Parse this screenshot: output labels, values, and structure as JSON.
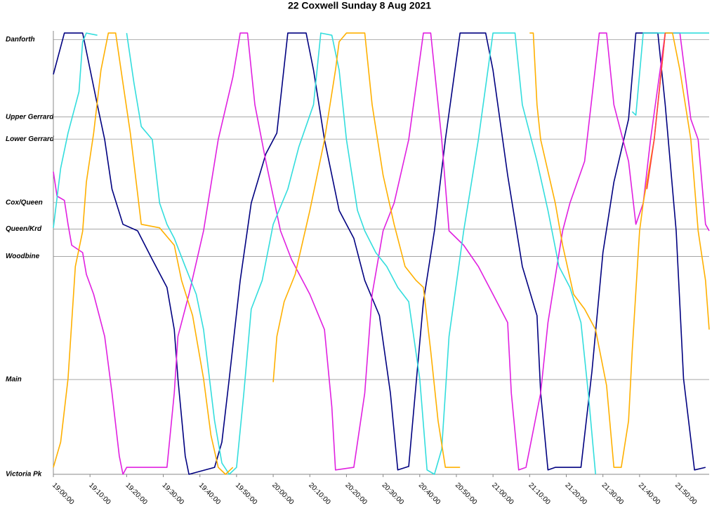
{
  "chart_data": {
    "type": "line",
    "title": "22 Coxwell Sunday 8 Aug 2021",
    "xlim": [
      "19:00:00",
      "21:59:00"
    ],
    "xticks": [
      "19:00:00",
      "19:10:00",
      "19:20:00",
      "19:30:00",
      "19:40:00",
      "19:50:00",
      "20:00:00",
      "20:10:00",
      "20:20:00",
      "20:30:00",
      "20:40:00",
      "20:50:00",
      "21:00:00",
      "21:10:00",
      "21:20:00",
      "21:30:00",
      "21:40:00",
      "21:50:00"
    ],
    "ylim": [
      0,
      102
    ],
    "yticks": [
      {
        "value": 0,
        "label": "Victoria Pk"
      },
      {
        "value": 21.8,
        "label": "Main"
      },
      {
        "value": 50.1,
        "label": "Woodbine"
      },
      {
        "value": 56.4,
        "label": "Queen/Krd"
      },
      {
        "value": 62.5,
        "label": "Cox/Queen"
      },
      {
        "value": 77.1,
        "label": "Lower Gerrard"
      },
      {
        "value": 82.2,
        "label": "Upper Gerrard"
      },
      {
        "value": 100,
        "label": "Danforth"
      }
    ],
    "grid": true,
    "series": [
      {
        "color": "#000080",
        "x": [
          "19:00:00",
          "19:03:00",
          "19:08:00",
          "19:12:00",
          "19:14:00",
          "19:16:00",
          "19:19:00",
          "19:23:00",
          "19:27:00",
          "19:31:00",
          "19:33:00",
          "19:34:00",
          "19:36:00",
          "19:37:00",
          "19:44:00",
          "19:46:00",
          "19:48:00",
          "19:51:00",
          "19:54:00",
          "19:58:00",
          "20:01:00",
          "20:04:00",
          "20:09:00",
          "20:11:00",
          "20:14:00",
          "20:18:00",
          "20:22:00",
          "20:25:00",
          "20:29:00",
          "20:32:00",
          "20:34:00",
          "20:37:00",
          "20:41:00",
          "20:44:00",
          "20:47:00",
          "20:51:00",
          "20:58:00",
          "21:00:00",
          "21:04:00",
          "21:08:00",
          "21:12:00",
          "21:13:00",
          "21:15:00",
          "21:17:00",
          "21:24:00",
          "21:27:00",
          "21:30:00",
          "21:33:00",
          "21:37:00",
          "21:39:00",
          "21:45:00",
          "21:47:00",
          "21:50:00",
          "21:52:00",
          "21:55:00",
          "21:58:00"
        ],
        "values": [
          92,
          101.5,
          101.5,
          85,
          77,
          65.6,
          57.5,
          56,
          49.4,
          43,
          33.3,
          22,
          4.2,
          0,
          1.6,
          7.4,
          22,
          44.6,
          62.4,
          73.7,
          78.5,
          101.5,
          101.5,
          93,
          77,
          60.7,
          54.3,
          44.6,
          36.5,
          18.7,
          1,
          1.8,
          39.7,
          56,
          77,
          101.5,
          101.5,
          93,
          68.8,
          47.8,
          36.5,
          18.7,
          1,
          1.6,
          1.6,
          23.6,
          51,
          67.2,
          81.7,
          101.5,
          101.5,
          85,
          56,
          22,
          1,
          1.6
        ]
      },
      {
        "color": "#e020e0",
        "x": [
          "19:00:00",
          "19:01:00",
          "19:03:00",
          "19:04:00",
          "19:05:00",
          "19:08:00",
          "19:09:00",
          "19:11:00",
          "19:14:00",
          "19:16:00",
          "19:18:00",
          "19:19:00",
          "19:20:00",
          "19:31:00",
          "19:33:00",
          "19:34:00",
          "19:37:00",
          "19:41:00",
          "19:45:00",
          "19:49:00",
          "19:51:00",
          "19:53:00",
          "19:55:00",
          "19:58:00",
          "20:02:00",
          "20:05:00",
          "20:10:00",
          "20:14:00",
          "20:16:00",
          "20:17:00",
          "20:22:00",
          "20:25:00",
          "20:27:00",
          "20:30:00",
          "20:33:00",
          "20:37:00",
          "20:41:00",
          "20:43:00",
          "20:46:00",
          "20:48:00",
          "20:52:00",
          "20:56:00",
          "21:00:00",
          "21:04:00",
          "21:05:00",
          "21:07:00",
          "21:09:00",
          "21:13:00",
          "21:15:00",
          "21:19:00",
          "21:21:00",
          "21:25:00",
          "21:29:00",
          "21:31:00",
          "21:33:00",
          "21:37:00",
          "21:39:00",
          "21:41:00",
          "21:43:00",
          "21:47:00",
          "21:51:00",
          "21:54:00",
          "21:56:00",
          "21:58:00",
          "21:59:00"
        ],
        "values": [
          69.6,
          64,
          63,
          57.5,
          52.7,
          51,
          46,
          41.4,
          31.7,
          18.7,
          4.2,
          0,
          1.6,
          1.6,
          18.7,
          31.7,
          41.4,
          56,
          77,
          91.4,
          101.5,
          101.5,
          85,
          72,
          56,
          49.4,
          41.4,
          33.3,
          15.5,
          1,
          1.6,
          18.7,
          41.4,
          56,
          62.4,
          77,
          101.5,
          101.5,
          77,
          56,
          52.7,
          47.8,
          41.4,
          34.9,
          18.7,
          1,
          1.6,
          18.7,
          34.9,
          56,
          62.4,
          72,
          101.5,
          101.5,
          85,
          72,
          57.5,
          62.4,
          77,
          101.5,
          101.5,
          81.7,
          77,
          57.5,
          56
        ]
      },
      {
        "color": "#33dddd",
        "x": [
          "19:00:00",
          "19:02:00",
          "19:04:00",
          "19:07:00",
          "19:08:00",
          "19:09:00",
          "19:12:00",
          "19:14:00",
          "19:20:00",
          "19:22:00",
          "19:24:00",
          "19:27:00",
          "19:29:00",
          "19:31:00",
          "19:33:00",
          "19:36:00",
          "19:39:00",
          "19:41:00",
          "19:44:00",
          "19:46:00",
          "19:48:00",
          "19:50:00",
          "19:52:00",
          "19:54:00",
          "19:57:00",
          "20:00:00",
          "20:04:00",
          "20:07:00",
          "20:11:00",
          "20:13:00",
          "20:16:00",
          "20:18:00",
          "20:20:00",
          "20:23:00",
          "20:25:00",
          "20:28:00",
          "20:31:00",
          "20:34:00",
          "20:37:00",
          "20:40:00",
          "20:42:00",
          "20:44:00",
          "20:46:00",
          "20:48:00",
          "20:52:00",
          "20:56:00",
          "21:00:00",
          "21:06:00",
          "21:08:00",
          "21:12:00",
          "21:15:00",
          "21:18:00",
          "21:21:00",
          "21:24:00",
          "21:26:00",
          "21:28:00",
          "21:30:00",
          "21:38:00",
          "21:39:00",
          "21:41:00",
          "21:59:00"
        ],
        "values": [
          56.7,
          70.4,
          78.5,
          88,
          99.5,
          101.5,
          101,
          null,
          101.5,
          90,
          80,
          77,
          62.4,
          57.5,
          54.3,
          47.8,
          41.4,
          33.3,
          12.3,
          2.6,
          0,
          1.6,
          18.7,
          38,
          44.6,
          57.5,
          65.6,
          75.3,
          85,
          101.5,
          101,
          93,
          77,
          60.7,
          56,
          51,
          47.8,
          43,
          39.7,
          22,
          1,
          0,
          5.8,
          31.7,
          56,
          77,
          101.5,
          101.5,
          85,
          72,
          60.7,
          47.8,
          43,
          34.9,
          18.7,
          0,
          null,
          83.4,
          82.6,
          101.5,
          101.5
        ]
      },
      {
        "color": "#ffb000",
        "x": [
          "19:00:00",
          "19:02:00",
          "19:04:00",
          "19:06:00",
          "19:08:00",
          "19:09:00",
          "19:11:00",
          "19:13:00",
          "19:15:00",
          "19:17:00",
          "19:19:00",
          "19:21:00",
          "19:24:00",
          "19:29:00",
          "19:33:00",
          "19:35:00",
          "19:38:00",
          "19:41:00",
          "19:43:00",
          "19:45:00",
          "19:47:00",
          "19:49:00",
          "19:55:00",
          "20:00:00",
          "20:01:00",
          "20:03:00",
          "20:06:00",
          "20:10:00",
          "20:14:00",
          "20:17:00",
          "20:18:00",
          "20:20:00",
          "20:25:00",
          "20:27:00",
          "20:30:00",
          "20:33:00",
          "20:36:00",
          "20:39:00",
          "20:41:00",
          "20:43:00",
          "20:45:00",
          "20:47:00",
          "20:48:00",
          "20:51:00",
          "21:00:00",
          "21:10:00",
          "21:11:00",
          "21:12:00",
          "21:13:00",
          "21:17:00",
          "21:19:00",
          "21:22:00",
          "21:25:00",
          "21:28:00",
          "21:31:00",
          "21:33:00",
          "21:35:00",
          "21:37:00",
          "21:38:00",
          "21:40:00",
          "21:41:00",
          "21:44:00",
          "21:47:00",
          "21:49:00",
          "21:51:00",
          "21:54:00",
          "21:56:00",
          "21:58:00",
          "21:59:00"
        ],
        "values": [
          1.6,
          7.4,
          22,
          47.8,
          55.9,
          67.2,
          78.5,
          93,
          101.5,
          101.5,
          90,
          78.5,
          57.5,
          56.7,
          52.7,
          44.6,
          36.5,
          22,
          9,
          1.6,
          0,
          1.6,
          null,
          21.2,
          31.7,
          39.7,
          46,
          60.7,
          76.9,
          93,
          99.5,
          101.5,
          101.5,
          85,
          68.8,
          57.5,
          47.8,
          44.6,
          43,
          28.4,
          12.3,
          1.6,
          1.6,
          1.6,
          null,
          101.5,
          101.5,
          85,
          77,
          62.4,
          52.7,
          41.4,
          38,
          33.3,
          20.4,
          1.6,
          1.6,
          12.3,
          28.4,
          56,
          62.4,
          77,
          101.5,
          101.5,
          93,
          77,
          56,
          44.6,
          33.3
        ]
      },
      {
        "color": "#ff4040",
        "x": [
          "21:42:00",
          "21:44:00",
          "21:47:00"
        ],
        "values": [
          65.6,
          77,
          101.5
        ]
      }
    ]
  }
}
